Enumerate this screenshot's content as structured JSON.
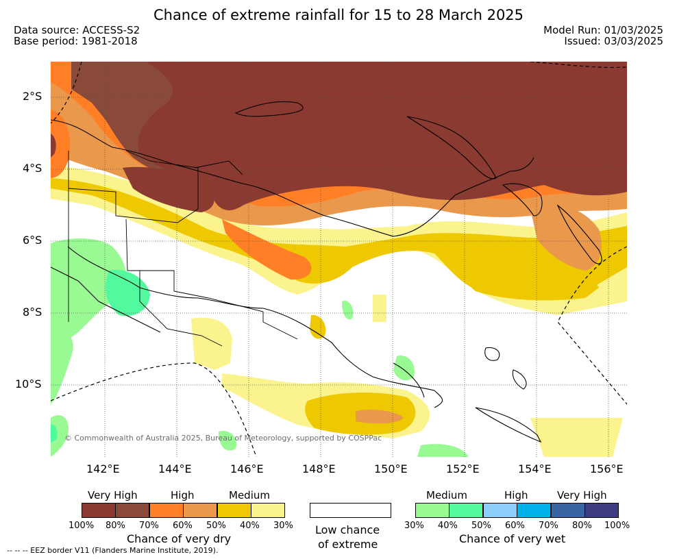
{
  "title": "Chance of extreme rainfall for 15 to 28 March 2025",
  "info_left": {
    "source": "Data source: ACCESS-S2",
    "base": "Base period: 1981-2018"
  },
  "info_right": {
    "run": "Model Run: 01/03/2025",
    "issued": "Issued: 03/03/2025"
  },
  "map": {
    "lat_labels": [
      "2°S",
      "4°S",
      "6°S",
      "8°S",
      "10°S"
    ],
    "lon_labels": [
      "142°E",
      "144°E",
      "146°E",
      "148°E",
      "150°E",
      "152°E",
      "154°E",
      "156°E"
    ],
    "copyright": "© Commonwealth of Australia 2025, Bureau of Meteorology, supported by COSPPac"
  },
  "legend": {
    "dry": {
      "headers": [
        "Very High",
        "High",
        "Medium"
      ],
      "colors": [
        "#8a3a30",
        "#8a4a3a",
        "#ff7f27",
        "#ea984c",
        "#eec800",
        "#fbf48e"
      ],
      "ticks": [
        "100%",
        "80%",
        "70%",
        "60%",
        "50%",
        "40%",
        "30%"
      ],
      "title": "Chance of very dry"
    },
    "low": {
      "line1": "Low chance",
      "line2": "of extreme"
    },
    "wet": {
      "headers": [
        "Medium",
        "High",
        "Very High"
      ],
      "colors": [
        "#99f993",
        "#52fa9f",
        "#8dcefa",
        "#00b2ea",
        "#3a64a3",
        "#3c3c7e"
      ],
      "ticks": [
        "30%",
        "40%",
        "50%",
        "60%",
        "70%",
        "80%",
        "100%"
      ],
      "title": "Chance of very wet"
    }
  },
  "footnote": "-- -- -- EEZ border V11 (Flanders Marine Institute, 2019)."
}
